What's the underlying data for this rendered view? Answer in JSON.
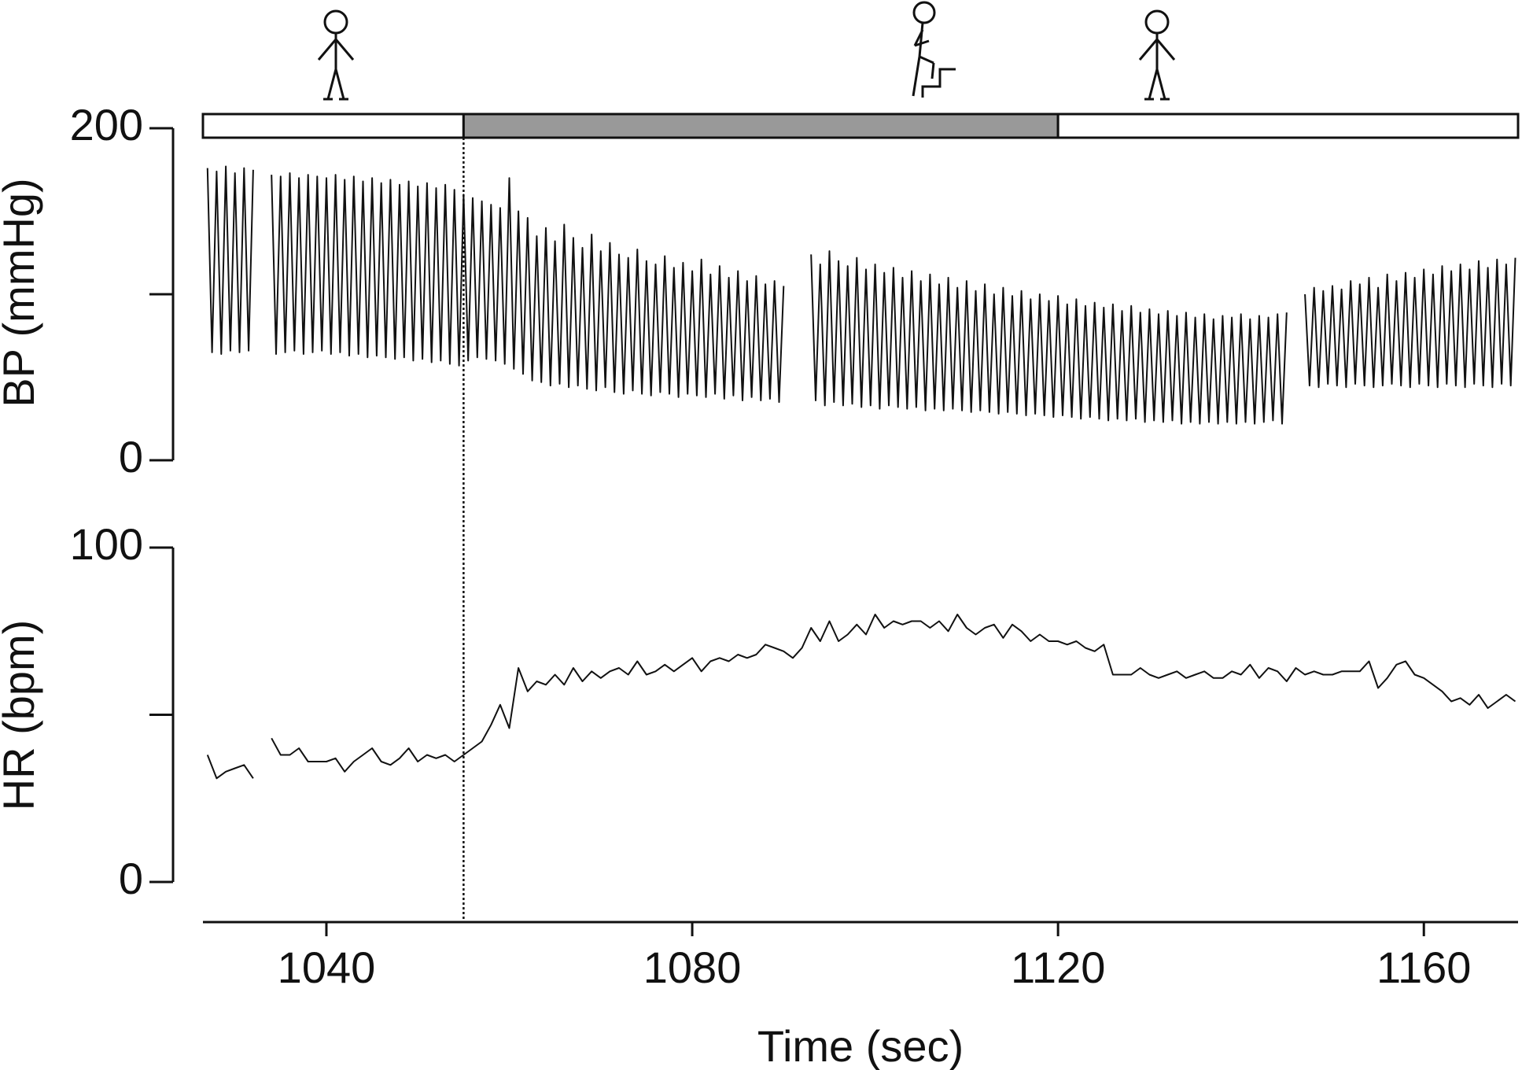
{
  "chart_data": [
    {
      "type": "line",
      "y_label": "BP (mmHg)",
      "color": "#111111",
      "xlim": [
        1026.5,
        1170.3
      ],
      "ylim": [
        0,
        200
      ],
      "yticks": [
        0,
        200
      ],
      "minor_yticks": [
        100
      ],
      "phases": [
        {
          "start": 1026.5,
          "end": 1055,
          "color": "#ffffff"
        },
        {
          "start": 1055,
          "end": 1120,
          "color": "#999999"
        },
        {
          "start": 1120,
          "end": 1170.3,
          "color": "#ffffff"
        }
      ],
      "marker_x": 1055,
      "x": [
        1027,
        1027.5,
        1028,
        1028.5,
        1029,
        1029.5,
        1030,
        1030.5,
        1031,
        1031.5,
        1032,
        1032.5,
        1033,
        1033.5,
        1034,
        1034.5,
        1035,
        1035.5,
        1036,
        1036.5,
        1037,
        1037.5,
        1038,
        1038.5,
        1039,
        1039.5,
        1040,
        1040.5,
        1041,
        1041.5,
        1042,
        1042.5,
        1043,
        1043.5,
        1044,
        1044.5,
        1045,
        1045.5,
        1046,
        1046.5,
        1047,
        1047.5,
        1048,
        1048.5,
        1049,
        1049.5,
        1050,
        1050.5,
        1051,
        1051.5,
        1052,
        1052.5,
        1053,
        1053.5,
        1054,
        1054.5,
        1055,
        1055.5,
        1056,
        1056.5,
        1057,
        1057.5,
        1058,
        1058.5,
        1059,
        1059.5,
        1060,
        1060.5,
        1061,
        1061.5,
        1062,
        1062.5,
        1063,
        1063.5,
        1064,
        1064.5,
        1065,
        1065.5,
        1066,
        1066.5,
        1067,
        1067.5,
        1068,
        1068.5,
        1069,
        1069.5,
        1070,
        1070.5,
        1071,
        1071.5,
        1072,
        1072.5,
        1073,
        1073.5,
        1074,
        1074.5,
        1075,
        1075.5,
        1076,
        1076.5,
        1077,
        1077.5,
        1078,
        1078.5,
        1079,
        1079.5,
        1080,
        1080.5,
        1081,
        1081.5,
        1082,
        1082.5,
        1083,
        1083.5,
        1084,
        1084.5,
        1085,
        1085.5,
        1086,
        1086.5,
        1087,
        1087.5,
        1088,
        1088.5,
        1089,
        1089.5,
        1090,
        1090.5,
        1091,
        1091.5,
        1092,
        1092.5,
        1093,
        1093.5,
        1094,
        1094.5,
        1095,
        1095.5,
        1096,
        1096.5,
        1097,
        1097.5,
        1098,
        1098.5,
        1099,
        1099.5,
        1100,
        1100.5,
        1101,
        1101.5,
        1102,
        1102.5,
        1103,
        1103.5,
        1104,
        1104.5,
        1105,
        1105.5,
        1106,
        1106.5,
        1107,
        1107.5,
        1108,
        1108.5,
        1109,
        1109.5,
        1110,
        1110.5,
        1111,
        1111.5,
        1112,
        1112.5,
        1113,
        1113.5,
        1114,
        1114.5,
        1115,
        1115.5,
        1116,
        1116.5,
        1117,
        1117.5,
        1118,
        1118.5,
        1119,
        1119.5,
        1120,
        1120.5,
        1121,
        1121.5,
        1122,
        1122.5,
        1123,
        1123.5,
        1124,
        1124.5,
        1125,
        1125.5,
        1126,
        1126.5,
        1127,
        1127.5,
        1128,
        1128.5,
        1129,
        1129.5,
        1130,
        1130.5,
        1131,
        1131.5,
        1132,
        1132.5,
        1133,
        1133.5,
        1134,
        1134.5,
        1135,
        1135.5,
        1136,
        1136.5,
        1137,
        1137.5,
        1138,
        1138.5,
        1139,
        1139.5,
        1140,
        1140.5,
        1141,
        1141.5,
        1142,
        1142.5,
        1143,
        1143.5,
        1144,
        1144.5,
        1145,
        1145.5,
        1146,
        1146.5,
        1147,
        1147.5,
        1148,
        1148.5,
        1149,
        1149.5,
        1150,
        1150.5,
        1151,
        1151.5,
        1152,
        1152.5,
        1153,
        1153.5,
        1154,
        1154.5,
        1155,
        1155.5,
        1156,
        1156.5,
        1157,
        1157.5,
        1158,
        1158.5,
        1159,
        1159.5,
        1160,
        1160.5,
        1161,
        1161.5,
        1162,
        1162.5,
        1163,
        1163.5,
        1164,
        1164.5,
        1165,
        1165.5,
        1166,
        1166.5,
        1167,
        1167.5,
        1168,
        1168.5,
        1169,
        1169.5,
        1170
      ],
      "values": [
        176,
        65,
        174,
        64,
        177,
        66,
        173,
        65,
        176,
        66,
        175,
        null,
        null,
        null,
        172,
        64,
        171,
        65,
        173,
        66,
        170,
        64,
        172,
        65,
        171,
        66,
        170,
        64,
        172,
        65,
        169,
        63,
        171,
        64,
        168,
        62,
        170,
        63,
        167,
        62,
        169,
        61,
        166,
        62,
        168,
        60,
        165,
        61,
        167,
        59,
        164,
        60,
        166,
        58,
        163,
        57,
        160,
        60,
        158,
        62,
        156,
        61,
        154,
        60,
        152,
        58,
        170,
        55,
        150,
        52,
        146,
        48,
        135,
        47,
        140,
        45,
        132,
        46,
        142,
        44,
        134,
        45,
        128,
        43,
        136,
        42,
        126,
        44,
        131,
        41,
        124,
        40,
        122,
        42,
        127,
        40,
        120,
        39,
        118,
        41,
        123,
        40,
        116,
        38,
        119,
        40,
        114,
        39,
        121,
        38,
        112,
        40,
        117,
        37,
        110,
        39,
        114,
        36,
        108,
        38,
        111,
        36,
        106,
        37,
        108,
        35,
        105,
        null,
        null,
        null,
        null,
        null,
        124,
        36,
        118,
        33,
        126,
        35,
        120,
        33,
        117,
        34,
        122,
        32,
        115,
        33,
        118,
        31,
        113,
        33,
        116,
        32,
        110,
        31,
        114,
        32,
        108,
        30,
        112,
        31,
        106,
        30,
        110,
        31,
        104,
        30,
        108,
        29,
        102,
        30,
        106,
        29,
        100,
        28,
        104,
        29,
        99,
        28,
        102,
        27,
        97,
        28,
        100,
        27,
        96,
        26,
        99,
        27,
        94,
        26,
        97,
        25,
        93,
        26,
        95,
        25,
        92,
        24,
        94,
        25,
        90,
        24,
        93,
        25,
        89,
        23,
        91,
        24,
        88,
        23,
        90,
        24,
        87,
        22,
        89,
        23,
        86,
        22,
        88,
        23,
        85,
        22,
        87,
        23,
        86,
        22,
        88,
        23,
        85,
        22,
        87,
        23,
        86,
        24,
        88,
        22,
        89,
        null,
        null,
        null,
        100,
        45,
        104,
        44,
        102,
        46,
        105,
        45,
        103,
        44,
        108,
        46,
        106,
        45,
        110,
        44,
        104,
        45,
        112,
        46,
        108,
        45,
        113,
        44,
        110,
        46,
        115,
        45,
        112,
        44,
        117,
        46,
        114,
        45,
        118,
        44,
        115,
        46,
        120,
        45,
        116,
        44,
        121,
        46,
        118,
        45,
        122
      ]
    },
    {
      "type": "line",
      "y_label": "HR (bpm)",
      "x_label": "Time (sec)",
      "color": "#111111",
      "xlim": [
        1026.5,
        1170.3
      ],
      "ylim": [
        0,
        100
      ],
      "yticks": [
        0,
        100
      ],
      "minor_yticks": [
        50
      ],
      "xticks": [
        1040,
        1080,
        1120,
        1160
      ],
      "x": [
        1027,
        1028,
        1029,
        1030,
        1031,
        1032,
        1033,
        1034,
        1035,
        1036,
        1037,
        1038,
        1039,
        1040,
        1041,
        1042,
        1043,
        1044,
        1045,
        1046,
        1047,
        1048,
        1049,
        1050,
        1051,
        1052,
        1053,
        1054,
        1055,
        1056,
        1057,
        1058,
        1059,
        1060,
        1061,
        1062,
        1063,
        1064,
        1065,
        1066,
        1067,
        1068,
        1069,
        1070,
        1071,
        1072,
        1073,
        1074,
        1075,
        1076,
        1077,
        1078,
        1079,
        1080,
        1081,
        1082,
        1083,
        1084,
        1085,
        1086,
        1087,
        1088,
        1089,
        1090,
        1091,
        1092,
        1093,
        1094,
        1095,
        1096,
        1097,
        1098,
        1099,
        1100,
        1101,
        1102,
        1103,
        1104,
        1105,
        1106,
        1107,
        1108,
        1109,
        1110,
        1111,
        1112,
        1113,
        1114,
        1115,
        1116,
        1117,
        1118,
        1119,
        1120,
        1121,
        1122,
        1123,
        1124,
        1125,
        1126,
        1127,
        1128,
        1129,
        1130,
        1131,
        1132,
        1133,
        1134,
        1135,
        1136,
        1137,
        1138,
        1139,
        1140,
        1141,
        1142,
        1143,
        1144,
        1145,
        1146,
        1147,
        1148,
        1149,
        1150,
        1151,
        1152,
        1153,
        1154,
        1155,
        1156,
        1157,
        1158,
        1159,
        1160,
        1161,
        1162,
        1163,
        1164,
        1165,
        1166,
        1167,
        1168,
        1169,
        1170
      ],
      "values": [
        38,
        31,
        33,
        34,
        35,
        31,
        null,
        43,
        38,
        38,
        40,
        36,
        36,
        36,
        37,
        33,
        36,
        38,
        40,
        36,
        35,
        37,
        40,
        36,
        38,
        37,
        38,
        36,
        38,
        40,
        42,
        47,
        53,
        46,
        64,
        57,
        60,
        59,
        62,
        59,
        64,
        60,
        63,
        61,
        63,
        64,
        62,
        66,
        62,
        63,
        65,
        63,
        65,
        67,
        63,
        66,
        67,
        66,
        68,
        67,
        68,
        71,
        70,
        69,
        67,
        70,
        76,
        72,
        78,
        72,
        74,
        77,
        74,
        80,
        76,
        78,
        77,
        78,
        78,
        76,
        78,
        75,
        80,
        76,
        74,
        76,
        77,
        73,
        77,
        75,
        72,
        74,
        72,
        72,
        71,
        72,
        70,
        69,
        71,
        62,
        62,
        62,
        64,
        62,
        61,
        62,
        63,
        61,
        62,
        63,
        61,
        61,
        63,
        62,
        65,
        61,
        64,
        63,
        60,
        64,
        62,
        63,
        62,
        62,
        63,
        63,
        63,
        66,
        58,
        61,
        65,
        66,
        62,
        61,
        59,
        57,
        54,
        55,
        53,
        56,
        52,
        54,
        56,
        54
      ]
    }
  ]
}
